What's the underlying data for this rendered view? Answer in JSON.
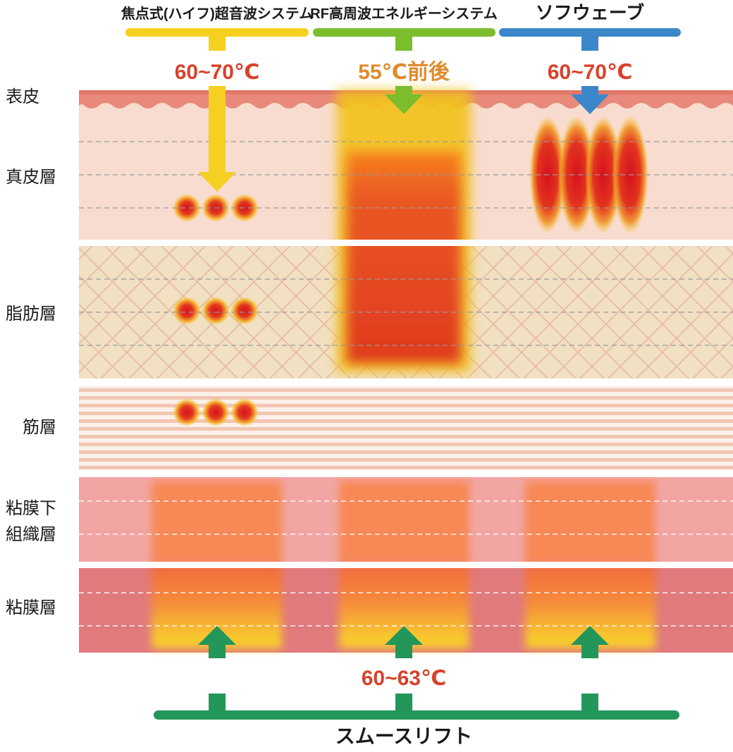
{
  "methods": {
    "hifu": {
      "label": "焦点式(ハイフ)超音波システム",
      "temp": "60~70℃",
      "color": "#F5D020"
    },
    "rf": {
      "label": "RF高周波エネルギーシステム",
      "temp": "55℃前後",
      "color": "#7CBD2E",
      "temp_color": "#E08A2A"
    },
    "sofwave": {
      "label": "ソフウェーブ",
      "temp": "60~70℃",
      "color": "#3C87CA"
    }
  },
  "temp_color": "#D9412A",
  "layers": {
    "epidermis": "表皮",
    "dermis": "真皮層",
    "fat": "脂肪層",
    "muscle": "筋層",
    "submucosa_line1": "粘膜下",
    "submucosa_line2": "組織層",
    "mucosa": "粘膜層"
  },
  "smooth_lift": {
    "label": "スムースリフト",
    "temp": "60~63℃",
    "color": "#23965A"
  }
}
